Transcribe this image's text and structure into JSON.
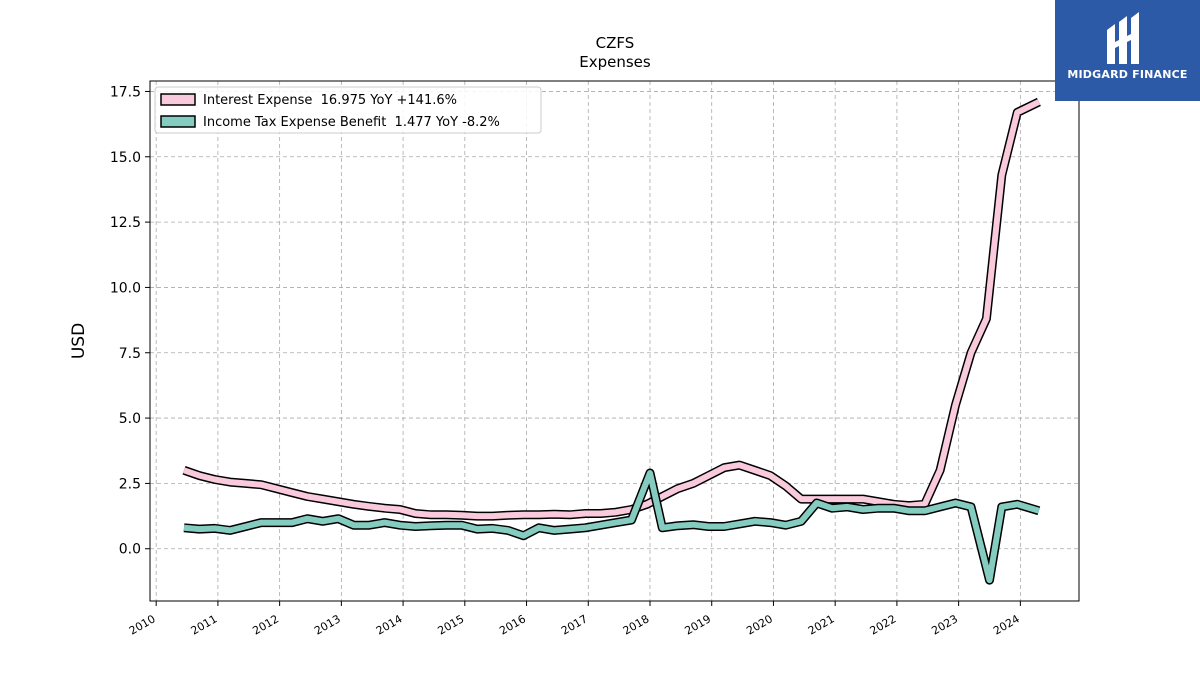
{
  "brand": {
    "name": "MIDGARD FINANCE",
    "bg_color": "#2c5aa7"
  },
  "chart_data": {
    "type": "line",
    "title": "CZFS",
    "subtitle": "Expenses",
    "ylabel": "USD",
    "xlabel": "",
    "ylim": [
      -2.0,
      17.9
    ],
    "xlim": [
      2009.9,
      2024.95
    ],
    "yticks": [
      0.0,
      2.5,
      5.0,
      7.5,
      10.0,
      12.5,
      15.0,
      17.5
    ],
    "ytick_labels": [
      "0.0",
      "2.5",
      "5.0",
      "7.5",
      "10.0",
      "12.5",
      "15.0",
      "17.5"
    ],
    "xticks": [
      2010,
      2011,
      2012,
      2013,
      2014,
      2015,
      2016,
      2017,
      2018,
      2019,
      2020,
      2021,
      2022,
      2023,
      2024
    ],
    "xtick_labels": [
      "2010",
      "2011",
      "2012",
      "2013",
      "2014",
      "2015",
      "2016",
      "2017",
      "2018",
      "2019",
      "2020",
      "2021",
      "2022",
      "2023",
      "2024"
    ],
    "grid": true,
    "legend_position": "top-left",
    "series": [
      {
        "name": "Interest Expense",
        "legend_label": "Interest Expense  16.975 YoY +141.6%",
        "color": "#f9c9dc",
        "x": [
          2010.45,
          2010.7,
          2010.95,
          2011.2,
          2011.45,
          2011.7,
          2011.95,
          2012.2,
          2012.45,
          2012.7,
          2012.95,
          2013.2,
          2013.45,
          2013.7,
          2013.95,
          2014.2,
          2014.45,
          2014.7,
          2014.95,
          2015.2,
          2015.45,
          2015.7,
          2015.95,
          2016.2,
          2016.45,
          2016.7,
          2016.95,
          2017.2,
          2017.45,
          2017.7,
          2017.95,
          2018.2,
          2018.45,
          2018.7,
          2018.95,
          2019.2,
          2019.45,
          2019.7,
          2019.95,
          2020.2,
          2020.45,
          2020.7,
          2020.95,
          2021.2,
          2021.45,
          2021.7,
          2021.95,
          2022.2,
          2022.45,
          2022.7,
          2022.95,
          2023.2,
          2023.45,
          2023.7,
          2023.95,
          2024.3
        ],
        "values": [
          3.0,
          2.8,
          2.65,
          2.55,
          2.5,
          2.45,
          2.3,
          2.15,
          2.0,
          1.9,
          1.8,
          1.7,
          1.62,
          1.55,
          1.5,
          1.35,
          1.3,
          1.3,
          1.28,
          1.25,
          1.25,
          1.28,
          1.3,
          1.3,
          1.32,
          1.3,
          1.35,
          1.35,
          1.4,
          1.5,
          1.7,
          2.0,
          2.3,
          2.5,
          2.8,
          3.1,
          3.2,
          3.0,
          2.8,
          2.4,
          1.9,
          1.9,
          1.9,
          1.9,
          1.9,
          1.8,
          1.7,
          1.65,
          1.7,
          3.0,
          5.5,
          7.5,
          8.8,
          14.3,
          16.7,
          17.1
        ]
      },
      {
        "name": "Income Tax Expense Benefit",
        "legend_label": "Income Tax Expense Benefit  1.477 YoY -8.2%",
        "color": "#84ccc0",
        "x": [
          2010.45,
          2010.7,
          2010.95,
          2011.2,
          2011.45,
          2011.7,
          2011.95,
          2012.2,
          2012.45,
          2012.7,
          2012.95,
          2013.2,
          2013.45,
          2013.7,
          2013.95,
          2014.2,
          2014.45,
          2014.7,
          2014.95,
          2015.2,
          2015.45,
          2015.7,
          2015.95,
          2016.2,
          2016.45,
          2016.7,
          2016.95,
          2017.2,
          2017.45,
          2017.7,
          2018.0,
          2018.2,
          2018.45,
          2018.7,
          2018.95,
          2019.2,
          2019.45,
          2019.7,
          2019.95,
          2020.2,
          2020.45,
          2020.7,
          2020.95,
          2021.2,
          2021.45,
          2021.7,
          2021.95,
          2022.2,
          2022.45,
          2022.7,
          2022.95,
          2023.2,
          2023.5,
          2023.7,
          2023.95,
          2024.3
        ],
        "values": [
          0.8,
          0.75,
          0.78,
          0.7,
          0.85,
          1.0,
          1.0,
          1.0,
          1.15,
          1.05,
          1.15,
          0.9,
          0.9,
          1.0,
          0.9,
          0.85,
          0.88,
          0.9,
          0.9,
          0.75,
          0.78,
          0.7,
          0.5,
          0.8,
          0.7,
          0.75,
          0.8,
          0.9,
          1.0,
          1.1,
          2.9,
          0.8,
          0.88,
          0.92,
          0.85,
          0.85,
          0.95,
          1.05,
          1.0,
          0.9,
          1.05,
          1.75,
          1.55,
          1.6,
          1.5,
          1.55,
          1.55,
          1.45,
          1.45,
          1.6,
          1.75,
          1.6,
          -1.2,
          1.6,
          1.7,
          1.45
        ]
      }
    ]
  }
}
